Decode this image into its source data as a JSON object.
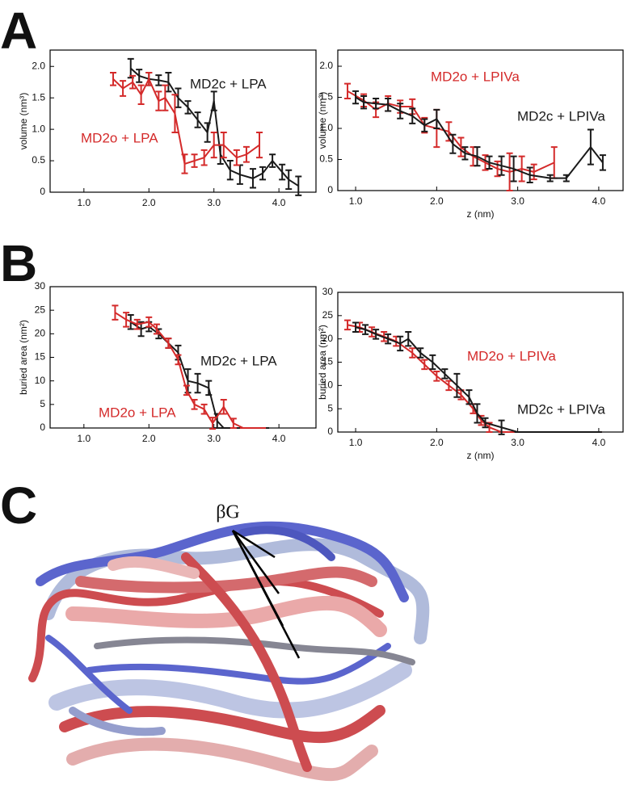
{
  "figure": {
    "panels": [
      "A",
      "B",
      "C"
    ],
    "structure_label": "βG"
  },
  "chart_data": [
    {
      "type": "line",
      "ylabel": "volume (nm³)",
      "xlim": [
        0.48,
        4.57
      ],
      "ylim": [
        0,
        2.26
      ],
      "xticks": [
        {
          "value": 1,
          "label": "1.0"
        },
        {
          "value": 2,
          "label": "2.0"
        },
        {
          "value": 3,
          "label": "3.0"
        },
        {
          "value": 4,
          "label": "4.0"
        }
      ],
      "yticks": [
        0,
        0.5,
        {
          "value": 1,
          "label": "1.0"
        },
        1.5,
        {
          "value": 2,
          "label": "2.0"
        }
      ],
      "series": [
        {
          "name": "MD2c + LPA",
          "color": "#1a1a1a",
          "x": [
            1.72,
            1.85,
            2.0,
            2.15,
            2.3,
            2.45,
            2.6,
            2.75,
            2.9,
            3.0,
            3.1,
            3.25,
            3.4,
            3.6,
            3.75,
            3.9,
            4.05,
            4.15,
            4.3
          ],
          "values": [
            1.97,
            1.85,
            1.8,
            1.78,
            1.75,
            1.5,
            1.35,
            1.15,
            0.95,
            1.45,
            0.6,
            0.35,
            0.28,
            0.22,
            0.3,
            0.5,
            0.32,
            0.2,
            0.1
          ],
          "errors": [
            0.15,
            0.1,
            0.1,
            0.08,
            0.15,
            0.15,
            0.1,
            0.12,
            0.15,
            0.15,
            0.15,
            0.15,
            0.15,
            0.15,
            0.1,
            0.1,
            0.12,
            0.15,
            0.15
          ]
        },
        {
          "name": "MD2o + LPA",
          "color": "#d42a2a",
          "x": [
            1.45,
            1.6,
            1.75,
            1.88,
            2.0,
            2.15,
            2.25,
            2.4,
            2.55,
            2.7,
            2.85,
            3.0,
            3.15,
            3.35,
            3.5,
            3.7
          ],
          "values": [
            1.8,
            1.65,
            1.75,
            1.55,
            1.8,
            1.45,
            1.5,
            1.25,
            0.45,
            0.5,
            0.55,
            0.75,
            0.75,
            0.55,
            0.6,
            0.75
          ],
          "errors": [
            0.1,
            0.12,
            0.1,
            0.15,
            0.1,
            0.15,
            0.2,
            0.3,
            0.15,
            0.1,
            0.12,
            0.2,
            0.2,
            0.12,
            0.12,
            0.2
          ]
        }
      ]
    },
    {
      "type": "line",
      "xlabel": "z (nm)",
      "ylabel": "volume (nm³)",
      "xlim": [
        0.78,
        4.3
      ],
      "ylim": [
        0,
        2.26
      ],
      "xticks": [
        {
          "value": 1,
          "label": "1.0"
        },
        {
          "value": 2,
          "label": "2.0"
        },
        {
          "value": 3,
          "label": "3.0"
        },
        {
          "value": 4,
          "label": "4.0"
        }
      ],
      "yticks": [
        0,
        0.5,
        {
          "value": 1,
          "label": "1.0"
        },
        1.5,
        {
          "value": 2,
          "label": "2.0"
        }
      ],
      "series": [
        {
          "name": "MD2o + LPIVa",
          "color": "#d42a2a",
          "x": [
            0.9,
            1.1,
            1.25,
            1.4,
            1.55,
            1.7,
            1.85,
            2.0,
            2.15,
            2.3,
            2.45,
            2.6,
            2.75,
            2.9,
            3.05,
            3.2,
            3.45
          ],
          "values": [
            1.6,
            1.45,
            1.3,
            1.4,
            1.35,
            1.35,
            1.05,
            1.0,
            0.95,
            0.7,
            0.55,
            0.45,
            0.35,
            0.3,
            0.35,
            0.3,
            0.45
          ],
          "errors": [
            0.12,
            0.1,
            0.12,
            0.12,
            0.1,
            0.12,
            0.12,
            0.3,
            0.15,
            0.15,
            0.15,
            0.12,
            0.12,
            0.3,
            0.2,
            0.12,
            0.25
          ]
        },
        {
          "name": "MD2c + LPIVa",
          "color": "#1a1a1a",
          "x": [
            1.0,
            1.1,
            1.25,
            1.4,
            1.55,
            1.7,
            1.85,
            2.0,
            2.2,
            2.35,
            2.5,
            2.65,
            2.8,
            2.95,
            3.15,
            3.4,
            3.6,
            3.9,
            4.05
          ],
          "values": [
            1.5,
            1.42,
            1.4,
            1.38,
            1.28,
            1.2,
            1.05,
            1.15,
            0.75,
            0.6,
            0.55,
            0.45,
            0.4,
            0.35,
            0.25,
            0.2,
            0.2,
            0.7,
            0.45
          ],
          "errors": [
            0.1,
            0.1,
            0.08,
            0.1,
            0.12,
            0.12,
            0.1,
            0.15,
            0.15,
            0.1,
            0.15,
            0.1,
            0.15,
            0.2,
            0.12,
            0.05,
            0.05,
            0.28,
            0.12
          ]
        }
      ]
    },
    {
      "type": "line",
      "ylabel": "buried area (nm²)",
      "xlim": [
        0.48,
        4.57
      ],
      "ylim": [
        0,
        30
      ],
      "xticks": [
        {
          "value": 1,
          "label": "1.0"
        },
        {
          "value": 2,
          "label": "2.0"
        },
        {
          "value": 3,
          "label": "3.0"
        },
        {
          "value": 4,
          "label": "4.0"
        }
      ],
      "yticks": [
        0,
        5,
        10,
        15,
        20,
        25,
        30
      ],
      "series": [
        {
          "name": "MD2c + LPA",
          "color": "#1a1a1a",
          "x": [
            1.72,
            1.88,
            2.0,
            2.15,
            2.3,
            2.45,
            2.6,
            2.75,
            2.92,
            3.05,
            3.15,
            3.3,
            3.5,
            3.8
          ],
          "values": [
            22.5,
            21,
            21.5,
            20,
            18,
            16,
            10,
            9.5,
            8.5,
            1.5,
            0,
            0,
            0,
            0
          ],
          "errors": [
            1.5,
            1.5,
            1,
            1,
            1,
            1.5,
            2.5,
            2,
            1.5,
            1.5,
            0,
            0,
            0,
            0
          ]
        },
        {
          "name": "MD2o + LPA",
          "color": "#d42a2a",
          "x": [
            1.48,
            1.65,
            1.82,
            2.0,
            2.12,
            2.3,
            2.45,
            2.58,
            2.7,
            2.85,
            2.98,
            3.15,
            3.3,
            3.45,
            3.75
          ],
          "values": [
            24.5,
            23,
            22,
            22.5,
            21,
            18,
            14.5,
            8,
            5,
            4,
            1,
            4.5,
            1,
            0,
            0
          ],
          "errors": [
            1.5,
            1.5,
            1,
            1,
            1,
            1,
            1,
            1,
            1,
            1,
            1.2,
            1.5,
            1,
            0,
            0
          ]
        }
      ]
    },
    {
      "type": "line",
      "xlabel": "z (nm)",
      "ylabel": "buried area (nm²)",
      "xlim": [
        0.78,
        4.3
      ],
      "ylim": [
        0,
        30
      ],
      "xticks": [
        {
          "value": 1,
          "label": "1.0"
        },
        {
          "value": 2,
          "label": "2.0"
        },
        {
          "value": 3,
          "label": "3.0"
        },
        {
          "value": 4,
          "label": "4.0"
        }
      ],
      "yticks": [
        0,
        5,
        10,
        15,
        20,
        25,
        30
      ],
      "series": [
        {
          "name": "MD2o + LPIVa",
          "color": "#d42a2a",
          "x": [
            0.9,
            1.05,
            1.2,
            1.35,
            1.5,
            1.7,
            1.85,
            2.0,
            2.15,
            2.3,
            2.45,
            2.55,
            2.65,
            2.8,
            3.0,
            3.3,
            3.6,
            4.0
          ],
          "values": [
            23,
            22.5,
            21.5,
            20.5,
            19.5,
            17,
            14.5,
            12,
            10,
            8,
            5,
            2.5,
            1,
            0,
            0,
            0,
            0,
            0
          ],
          "errors": [
            1,
            1,
            1,
            1,
            1,
            1,
            1,
            1,
            1,
            1,
            1,
            1,
            1,
            0,
            0,
            0,
            0,
            0
          ]
        },
        {
          "name": "MD2c + LPIVa",
          "color": "#1a1a1a",
          "x": [
            1.0,
            1.12,
            1.25,
            1.4,
            1.55,
            1.65,
            1.8,
            1.95,
            2.1,
            2.25,
            2.4,
            2.5,
            2.6,
            2.8,
            3.0,
            3.3,
            3.6,
            4.0
          ],
          "values": [
            22.5,
            22,
            21,
            20,
            19,
            20,
            17,
            15,
            12.5,
            10,
            7.5,
            4,
            2,
            1,
            0,
            0,
            0,
            0
          ],
          "errors": [
            1,
            1,
            1,
            1,
            1.5,
            1.5,
            1,
            1.5,
            1,
            2.5,
            1.5,
            2,
            1,
            1.5,
            0,
            0,
            0,
            0
          ]
        }
      ]
    }
  ]
}
